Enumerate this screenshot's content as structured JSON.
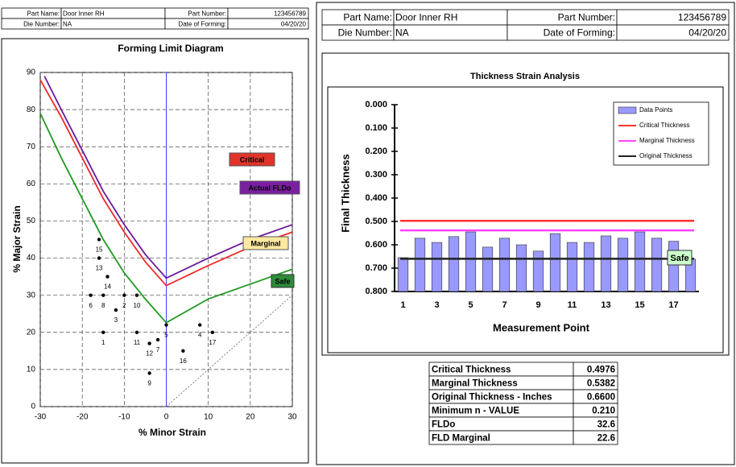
{
  "left_header": {
    "rows": [
      [
        "Part Name:",
        "Door Inner RH",
        "Part Number:",
        "123456789"
      ],
      [
        "Die Number:",
        "NA",
        "Date of Forming:",
        "04/20/20"
      ]
    ]
  },
  "right_header": {
    "rows": [
      [
        "Part Name:",
        "Door Inner RH",
        "Part Number:",
        "123456789"
      ],
      [
        "Die Number:",
        "NA",
        "Date of Forming:",
        "04/20/20"
      ]
    ]
  },
  "chart_data": [
    {
      "type": "scatter",
      "title": "Forming Limit Diagram",
      "x_label": "% Minor Strain",
      "y_label": "% Major Strain",
      "xlim": [
        -30,
        30
      ],
      "ylim": [
        0,
        90
      ],
      "xticks": [
        -30,
        -20,
        -10,
        0,
        10,
        20,
        30
      ],
      "yticks": [
        0,
        10,
        20,
        30,
        40,
        50,
        60,
        70,
        80,
        90
      ],
      "grid": true,
      "zero_line_color": "#3344ff",
      "series": [
        {
          "name": "Critical",
          "color": "#ee2a2a",
          "label_background": "#e0342b",
          "label_color": "#ffffff",
          "style": "line",
          "x": [
            -30,
            -25,
            -20,
            -15,
            -10,
            -5,
            0,
            10,
            20,
            30
          ],
          "values": [
            88,
            78,
            67,
            56,
            47,
            39,
            32.6,
            38,
            43,
            47
          ]
        },
        {
          "name": "Actual FLDo",
          "color": "#6a1a9a",
          "label_background": "#7a1fa0",
          "label_color": "#ffff33",
          "style": "line",
          "x": [
            -29,
            -25,
            -20,
            -15,
            -10,
            -5,
            0,
            10,
            20,
            30
          ],
          "values": [
            89,
            80,
            69,
            58,
            49,
            41,
            34.6,
            40,
            45,
            49
          ]
        },
        {
          "name": "Marginal",
          "color": "#229922",
          "label_background": "#ffe9a0",
          "label_color": "#000000",
          "style": "line",
          "x": [
            -30,
            -25,
            -20,
            -15,
            -10,
            -5,
            0,
            10,
            20,
            30
          ],
          "values": [
            79,
            67,
            56,
            45,
            36,
            29,
            22.6,
            29,
            33,
            37
          ]
        },
        {
          "color": "#666666",
          "style": "dotted",
          "x": [
            0,
            30
          ],
          "values": [
            0,
            30
          ]
        },
        {
          "color": "#000000",
          "style": "points",
          "labels": [
            "1",
            "2",
            "3",
            "4",
            "5",
            "6",
            "7",
            "8",
            "9",
            "10",
            "11",
            "12",
            "13",
            "14",
            "15",
            "16",
            "17"
          ],
          "x": [
            -15,
            -10,
            -12,
            8,
            0,
            -18,
            -2,
            -15,
            -4,
            -7,
            -7,
            -4,
            -16,
            -14,
            -16,
            4,
            11
          ],
          "values": [
            20,
            30,
            26,
            22,
            22,
            30,
            18,
            30,
            9,
            30,
            20,
            17,
            40,
            35,
            45,
            15,
            20
          ]
        }
      ],
      "annotations": [
        {
          "text": "Safe",
          "background": "#2e8b3a",
          "color": "#000000"
        }
      ]
    },
    {
      "type": "bar",
      "title": "Thickness Strain Analysis",
      "x_label": "Measurement Point",
      "y_label": "Final Thickness",
      "categories": [
        1,
        null,
        3,
        null,
        5,
        null,
        7,
        null,
        9,
        null,
        11,
        null,
        13,
        null,
        15,
        null,
        17,
        null
      ],
      "series": [
        {
          "name": "Data Points",
          "color": "#9999ff",
          "values": [
            0.655,
            0.572,
            0.59,
            0.565,
            0.545,
            0.61,
            0.572,
            0.6,
            0.627,
            0.552,
            0.59,
            0.59,
            0.562,
            0.572,
            0.545,
            0.572,
            0.585,
            0.662
          ]
        }
      ],
      "reference_lines": [
        {
          "name": "Critical Thickness",
          "color": "#ff3333",
          "value": 0.4976
        },
        {
          "name": "Marginal Thickness",
          "color": "#ff44ff",
          "value": 0.5382
        },
        {
          "name": "Original Thickness",
          "color": "#222222",
          "value": 0.66
        }
      ],
      "ylim": [
        0,
        0.8
      ],
      "y_inverted": true,
      "yticks": [
        {
          "value": 0,
          "label": "0.000"
        },
        {
          "value": 0.1,
          "label": "0.100"
        },
        {
          "value": 0.2,
          "label": "0.200"
        },
        {
          "value": 0.3,
          "label": "0.300"
        },
        {
          "value": 0.4,
          "label": "0.400"
        },
        {
          "value": 0.5,
          "label": "0.500"
        },
        {
          "value": 0.6,
          "label": "0.600"
        },
        {
          "value": 0.7,
          "label": "0.700"
        },
        {
          "value": 0.8,
          "label": "0.800"
        }
      ],
      "annotations": [
        {
          "text": "Safe",
          "background": "#ccffcc",
          "color": "#000000"
        }
      ]
    }
  ],
  "summary_table": {
    "rows": [
      {
        "label": "Critical Thickness",
        "value": "0.4976",
        "color": "#ff0000"
      },
      {
        "label": "Marginal Thickness",
        "value": "0.5382",
        "color": "#ee22ee"
      },
      {
        "label": "Original Thickness - Inches",
        "value": "0.6600",
        "color": "#999999"
      },
      {
        "label": "Minimum    n - VALUE",
        "value": "0.210",
        "color": "#000000"
      },
      {
        "label": "FLDo",
        "value": "32.6",
        "color": "#000000"
      },
      {
        "label": "FLD Marginal",
        "value": "22.6",
        "color": "#000000"
      }
    ]
  }
}
